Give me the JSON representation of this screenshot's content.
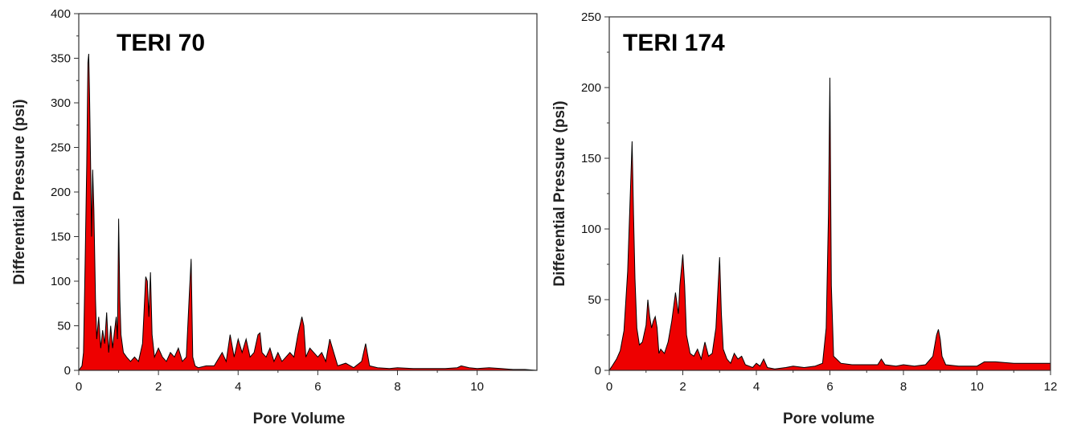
{
  "chart_data": [
    {
      "type": "area",
      "title": "TERI 70",
      "xlabel": "Pore Volume",
      "ylabel": "Differential Pressure (psi)",
      "xlim": [
        0,
        11.5
      ],
      "ylim": [
        0,
        400
      ],
      "x_ticks": [
        "0",
        "2",
        "4",
        "6",
        "8",
        "10"
      ],
      "y_ticks": [
        "0",
        "50",
        "100",
        "150",
        "200",
        "250",
        "300",
        "350",
        "400"
      ],
      "fill_color": "#ee0000",
      "line_color": "#000000",
      "series": [
        {
          "x": [
            0,
            0.08,
            0.12,
            0.16,
            0.2,
            0.23,
            0.25,
            0.27,
            0.3,
            0.32,
            0.35,
            0.38,
            0.42,
            0.45,
            0.5,
            0.55,
            0.6,
            0.65,
            0.7,
            0.75,
            0.8,
            0.85,
            0.9,
            0.94,
            0.97,
            1.0,
            1.03,
            1.06,
            1.12,
            1.2,
            1.3,
            1.4,
            1.5,
            1.6,
            1.68,
            1.72,
            1.76,
            1.8,
            1.84,
            1.9,
            2.0,
            2.1,
            2.2,
            2.3,
            2.4,
            2.5,
            2.6,
            2.7,
            2.78,
            2.82,
            2.86,
            2.92,
            3.0,
            3.2,
            3.4,
            3.6,
            3.7,
            3.8,
            3.9,
            4.0,
            4.1,
            4.2,
            4.3,
            4.4,
            4.5,
            4.55,
            4.6,
            4.7,
            4.8,
            4.9,
            5.0,
            5.1,
            5.2,
            5.3,
            5.4,
            5.5,
            5.6,
            5.65,
            5.7,
            5.8,
            5.9,
            6.0,
            6.1,
            6.2,
            6.3,
            6.4,
            6.5,
            6.7,
            6.9,
            7.1,
            7.2,
            7.3,
            7.5,
            7.8,
            8.0,
            8.4,
            8.8,
            9.2,
            9.5,
            9.6,
            9.8,
            10.0,
            10.3,
            10.6,
            10.9,
            11.2,
            11.5
          ],
          "y": [
            0,
            5,
            20,
            120,
            230,
            345,
            355,
            310,
            220,
            150,
            225,
            180,
            80,
            35,
            60,
            25,
            45,
            30,
            65,
            20,
            50,
            25,
            45,
            60,
            35,
            170,
            80,
            40,
            20,
            15,
            10,
            15,
            10,
            30,
            105,
            100,
            60,
            110,
            40,
            15,
            25,
            15,
            10,
            20,
            15,
            25,
            10,
            15,
            90,
            125,
            15,
            5,
            3,
            5,
            5,
            20,
            10,
            40,
            15,
            35,
            20,
            35,
            15,
            20,
            40,
            42,
            20,
            15,
            25,
            10,
            20,
            10,
            15,
            20,
            15,
            40,
            60,
            50,
            15,
            25,
            20,
            15,
            20,
            10,
            35,
            20,
            5,
            8,
            3,
            10,
            30,
            5,
            3,
            2,
            3,
            2,
            2,
            2,
            3,
            5,
            3,
            2,
            3,
            2,
            1,
            1,
            0
          ]
        }
      ]
    },
    {
      "type": "area",
      "title": "TERI 174",
      "xlabel": "Pore volume",
      "ylabel": "Differential Pressure (psi)",
      "xlim": [
        0,
        12
      ],
      "ylim": [
        0,
        250
      ],
      "x_ticks": [
        "0",
        "2",
        "4",
        "6",
        "8",
        "10",
        "12"
      ],
      "y_ticks": [
        "0",
        "50",
        "100",
        "150",
        "200",
        "250"
      ],
      "fill_color": "#ee0000",
      "line_color": "#000000",
      "series": [
        {
          "x": [
            0,
            0.1,
            0.2,
            0.3,
            0.4,
            0.5,
            0.58,
            0.62,
            0.66,
            0.7,
            0.75,
            0.82,
            0.9,
            1.0,
            1.05,
            1.1,
            1.15,
            1.2,
            1.25,
            1.3,
            1.35,
            1.4,
            1.5,
            1.6,
            1.7,
            1.8,
            1.88,
            1.92,
            2.0,
            2.05,
            2.1,
            2.2,
            2.3,
            2.4,
            2.5,
            2.6,
            2.7,
            2.8,
            2.9,
            2.97,
            3.0,
            3.05,
            3.1,
            3.2,
            3.3,
            3.4,
            3.5,
            3.6,
            3.7,
            3.8,
            3.9,
            4.0,
            4.1,
            4.2,
            4.3,
            4.5,
            4.8,
            5.0,
            5.3,
            5.6,
            5.8,
            5.9,
            5.96,
            6.0,
            6.04,
            6.1,
            6.3,
            6.6,
            7.0,
            7.3,
            7.4,
            7.5,
            7.8,
            8.0,
            8.3,
            8.6,
            8.8,
            8.9,
            8.95,
            9.0,
            9.05,
            9.15,
            9.5,
            10.0,
            10.2,
            10.5,
            11.0,
            11.5,
            12.0
          ],
          "y": [
            0,
            4,
            8,
            14,
            28,
            70,
            130,
            162,
            110,
            65,
            30,
            18,
            20,
            32,
            50,
            38,
            30,
            35,
            38,
            30,
            12,
            15,
            12,
            20,
            35,
            55,
            40,
            60,
            82,
            60,
            25,
            12,
            10,
            15,
            8,
            20,
            10,
            12,
            30,
            65,
            80,
            40,
            15,
            8,
            5,
            12,
            8,
            10,
            4,
            3,
            2,
            5,
            3,
            8,
            2,
            1,
            2,
            3,
            2,
            3,
            5,
            30,
            110,
            207,
            60,
            10,
            5,
            4,
            4,
            4,
            8,
            4,
            3,
            4,
            3,
            4,
            10,
            25,
            29,
            22,
            10,
            4,
            3,
            3,
            6,
            6,
            5,
            5,
            5
          ]
        }
      ]
    }
  ]
}
